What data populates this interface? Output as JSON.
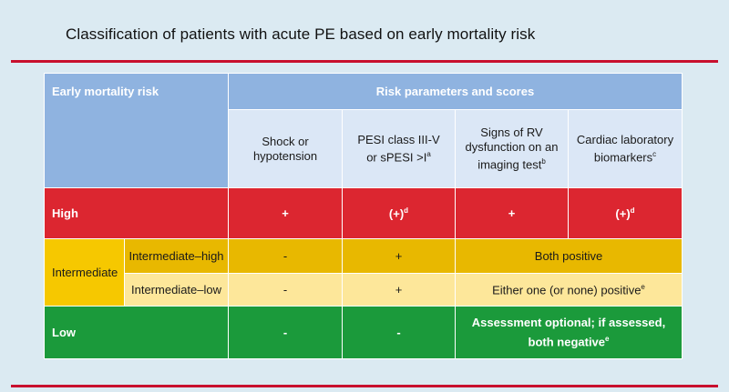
{
  "title": "Classification of patients with acute PE based on early mortality risk",
  "colors": {
    "rule": "#c8102e",
    "header": "#8fb3e0",
    "high": "#dc2630",
    "intermediate_high": "#e8b800",
    "intermediate_low": "#fde79a",
    "low": "#1b9a3b"
  },
  "header": {
    "early_mortality_risk": "Early mortality risk",
    "risk_parameters": "Risk parameters and scores",
    "col1_line1": "Shock or",
    "col1_line2": "hypotension",
    "col2_line1": "PESI class III-V",
    "col2_line2": "or sPESI >I",
    "col2_sup": "a",
    "col3_line1": "Signs of RV",
    "col3_line2": "dysfunction on an",
    "col3_line3": "imaging test",
    "col3_sup": "b",
    "col4_line1": "Cardiac laboratory",
    "col4_line2": "biomarkers",
    "col4_sup": "c"
  },
  "rows": {
    "high": {
      "label": "High",
      "c1": "+",
      "c2": "(+)",
      "c2_sup": "d",
      "c3": "+",
      "c4": "(+)",
      "c4_sup": "d"
    },
    "intermediate": {
      "label": "Intermediate"
    },
    "intermediate_high": {
      "label": "Intermediate–high",
      "c1": "-",
      "c2": "+",
      "c34": "Both positive"
    },
    "intermediate_low": {
      "label": "Intermediate–low",
      "c1": "-",
      "c2": "+",
      "c34": "Either one (or none) positive",
      "c34_sup": "e"
    },
    "low": {
      "label": "Low",
      "c1": "-",
      "c2": "-",
      "c34_line1": "Assessment optional; if assessed,",
      "c34_line2": "both negative",
      "c34_sup": "e"
    }
  }
}
